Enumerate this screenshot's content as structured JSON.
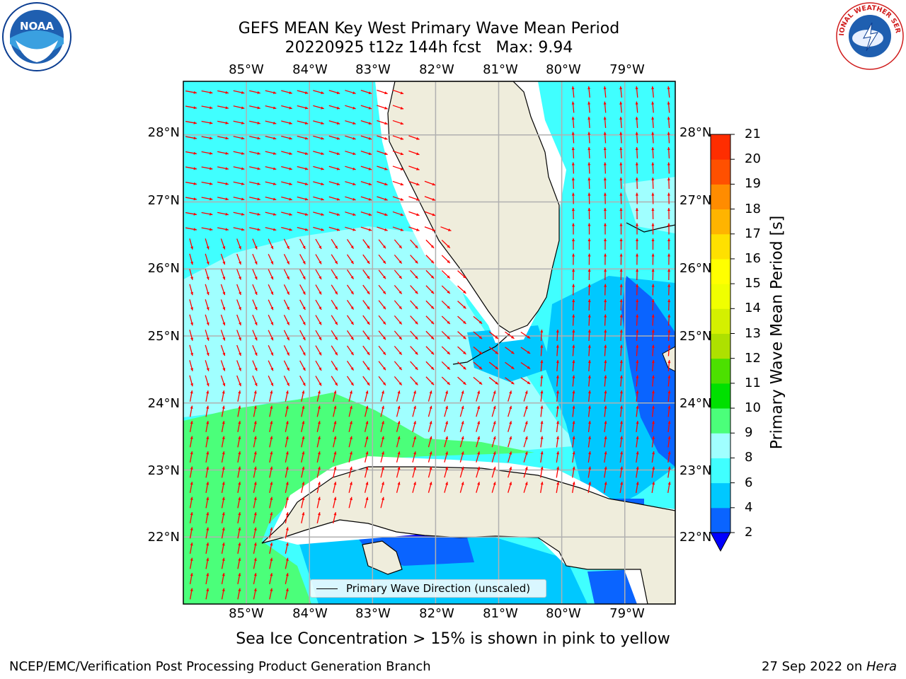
{
  "title": {
    "line1": "GEFS MEAN Key West Primary Wave Mean Period",
    "line2": "20220925 t12z 144h fcst   Max: 9.94"
  },
  "map": {
    "lon_ticks": [
      "85°W",
      "84°W",
      "83°W",
      "82°W",
      "81°W",
      "80°W",
      "79°W"
    ],
    "lat_ticks": [
      "28°N",
      "27°N",
      "26°N",
      "25°N",
      "24°N",
      "23°N",
      "22°N"
    ],
    "lon_range": [
      -86.0,
      -78.2
    ],
    "lat_range": [
      21.0,
      28.8
    ],
    "land_color": "#efeddc",
    "grid_color": "#b0b0b0",
    "arrow_color": "#ff0000",
    "legend_label": "Primary Wave Direction (unscaled)"
  },
  "colorbar": {
    "label": "Primary Wave Mean Period [s]",
    "ticks": [
      "2",
      "4",
      "6",
      "8",
      "9",
      "10",
      "11",
      "12",
      "13",
      "14",
      "15",
      "16",
      "17",
      "18",
      "19",
      "20",
      "21"
    ],
    "colors": [
      "#0a64ff",
      "#00c8ff",
      "#40ffff",
      "#a0ffff",
      "#4bff7a",
      "#00e000",
      "#4ce000",
      "#aee000",
      "#d4f000",
      "#f0ff00",
      "#ffff00",
      "#ffe000",
      "#ffb400",
      "#ff8c00",
      "#ff5000",
      "#ff2d00",
      "#ff0000"
    ],
    "under_color": "#0000ff"
  },
  "footer": {
    "sea_ice_note": "Sea Ice Concentration > 15% is shown in pink to yellow",
    "credit": "NCEP/EMC/Verification Post Processing Product Generation Branch",
    "date_prefix": "27 Sep 2022 on ",
    "date_host": "Hera"
  },
  "logos": {
    "noaa_text": "NOAA",
    "nws_text": "NATIONAL WEATHER SERVICE"
  }
}
